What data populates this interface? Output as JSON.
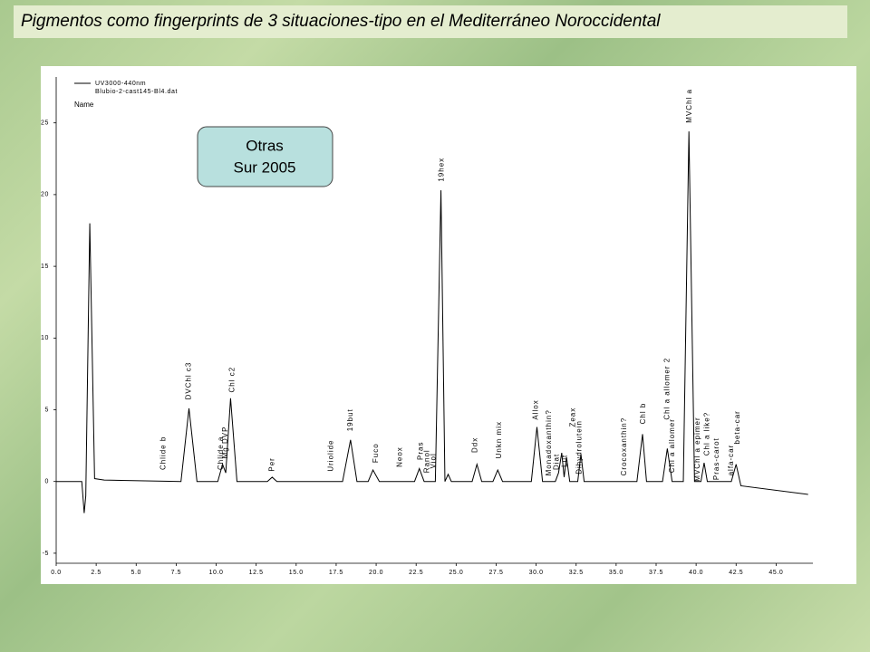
{
  "slide_title": "Pigmentos como fingerprints de 3 situaciones-tipo en el Mediterráneo Noroccidental",
  "chart_data": {
    "type": "line",
    "legend": [
      "UV3000-440nm",
      "Blubio-2-cast145-Bl4.dat",
      "Name"
    ],
    "box": [
      "Otras",
      "Sur 2005"
    ],
    "series": [
      {
        "color": "#000000",
        "x": [
          0,
          1.6,
          1.75,
          1.85,
          2.1,
          2.4,
          3,
          7.8,
          8.3,
          8.8,
          10.1,
          10.4,
          10.6,
          10.9,
          11.3,
          13.2,
          13.5,
          13.8,
          17.9,
          18.4,
          18.8,
          19.5,
          19.8,
          20.2,
          22.4,
          22.7,
          23.0,
          23.7,
          24.05,
          24.3,
          24.5,
          24.7,
          26.0,
          26.3,
          26.6,
          27.3,
          27.6,
          27.9,
          29.7,
          30.05,
          30.4,
          31.2,
          31.4,
          31.6,
          31.75,
          31.9,
          32.1,
          32.6,
          32.8,
          33.0,
          36.3,
          36.65,
          36.9,
          37.9,
          38.2,
          38.5,
          39.2,
          39.55,
          39.9,
          40.3,
          40.5,
          40.7,
          42.2,
          42.5,
          42.8,
          47.0
        ],
        "values": [
          0,
          0,
          -2.2,
          -1.0,
          18.0,
          0.2,
          0.1,
          0,
          5.1,
          0,
          0,
          1.2,
          0.6,
          5.8,
          0,
          0,
          0.3,
          0,
          0,
          2.9,
          0,
          0,
          0.8,
          0,
          0,
          0.9,
          0,
          0,
          20.3,
          0,
          0.5,
          0,
          0,
          1.2,
          0,
          0,
          0.8,
          0,
          0,
          3.8,
          0,
          0,
          0.6,
          2.0,
          0.3,
          1.7,
          0,
          0,
          1.9,
          0,
          0,
          3.3,
          0,
          0,
          2.3,
          0,
          0,
          24.4,
          0,
          0,
          1.3,
          0,
          0,
          1.2,
          -0.3,
          -0.9
        ]
      }
    ],
    "xlim": [
      0,
      47.3
    ],
    "ylim": [
      -5.7,
      28.2
    ],
    "xticks": [
      {
        "value": 0,
        "label": "0.0"
      },
      {
        "value": 2.5,
        "label": "2.5"
      },
      {
        "value": 5,
        "label": "5.0"
      },
      {
        "value": 7.5,
        "label": "7.5"
      },
      {
        "value": 10,
        "label": "10.0"
      },
      {
        "value": 12.5,
        "label": "12.5"
      },
      {
        "value": 15,
        "label": "15.0"
      },
      {
        "value": 17.5,
        "label": "17.5"
      },
      {
        "value": 20,
        "label": "20.0"
      },
      {
        "value": 22.5,
        "label": "22.5"
      },
      {
        "value": 25,
        "label": "25.0"
      },
      {
        "value": 27.5,
        "label": "27.5"
      },
      {
        "value": 30,
        "label": "30.0"
      },
      {
        "value": 32.5,
        "label": "32.5"
      },
      {
        "value": 35,
        "label": "35.0"
      },
      {
        "value": 37.5,
        "label": "37.5"
      },
      {
        "value": 40,
        "label": "40.0"
      },
      {
        "value": 42.5,
        "label": "42.5"
      },
      {
        "value": 45,
        "label": "45.0"
      }
    ],
    "yticks": [
      -5,
      0,
      5,
      10,
      15,
      20,
      25
    ],
    "annotations": [
      {
        "text": "Chlide b",
        "x": 6.7,
        "y": 0.8
      },
      {
        "text": "DVChl c3",
        "x": 8.3,
        "y": 5.7
      },
      {
        "text": "Chlide a",
        "x": 10.3,
        "y": 0.8
      },
      {
        "text": "Mg DVP",
        "x": 10.6,
        "y": 1.6
      },
      {
        "text": "Chl c2",
        "x": 11.0,
        "y": 6.2
      },
      {
        "text": "Per",
        "x": 13.5,
        "y": 0.7
      },
      {
        "text": "Uriolide",
        "x": 17.2,
        "y": 0.7
      },
      {
        "text": "19but",
        "x": 18.4,
        "y": 3.5
      },
      {
        "text": "Fuco",
        "x": 20.0,
        "y": 1.3
      },
      {
        "text": "Neox",
        "x": 21.5,
        "y": 1.0
      },
      {
        "text": "Pras",
        "x": 22.8,
        "y": 1.5
      },
      {
        "text": "Ranol",
        "x": 23.2,
        "y": 0.6
      },
      {
        "text": "Viol",
        "x": 23.6,
        "y": 0.9
      },
      {
        "text": "19hex",
        "x": 24.1,
        "y": 20.9
      },
      {
        "text": "Ddx",
        "x": 26.2,
        "y": 2.0
      },
      {
        "text": "Unkn mix",
        "x": 27.7,
        "y": 1.6
      },
      {
        "text": "Allox",
        "x": 30.0,
        "y": 4.3
      },
      {
        "text": "Monadoxanthin?",
        "x": 30.8,
        "y": 0.4
      },
      {
        "text": "Diat",
        "x": 31.3,
        "y": 0.8
      },
      {
        "text": "Lut",
        "x": 31.8,
        "y": 1.0
      },
      {
        "text": "Zeax",
        "x": 32.3,
        "y": 3.8
      },
      {
        "text": "Dihydrolutein",
        "x": 32.7,
        "y": 0.5
      },
      {
        "text": "Crocoxanthin?",
        "x": 35.5,
        "y": 0.4
      },
      {
        "text": "Chl b",
        "x": 36.7,
        "y": 4.0
      },
      {
        "text": "Chl a allomer 2",
        "x": 38.2,
        "y": 4.3
      },
      {
        "text": "Chl a allomer",
        "x": 38.5,
        "y": 0.6
      },
      {
        "text": "MVChl a",
        "x": 39.6,
        "y": 25.0
      },
      {
        "text": "MVChl a epimer",
        "x": 40.1,
        "y": 0.0
      },
      {
        "text": "Chl a like?",
        "x": 40.7,
        "y": 1.8
      },
      {
        "text": "Pras-carot",
        "x": 41.3,
        "y": 0.1
      },
      {
        "text": "alfa-car",
        "x": 42.2,
        "y": 0.4
      },
      {
        "text": "beta-car",
        "x": 42.6,
        "y": 2.6
      }
    ]
  }
}
